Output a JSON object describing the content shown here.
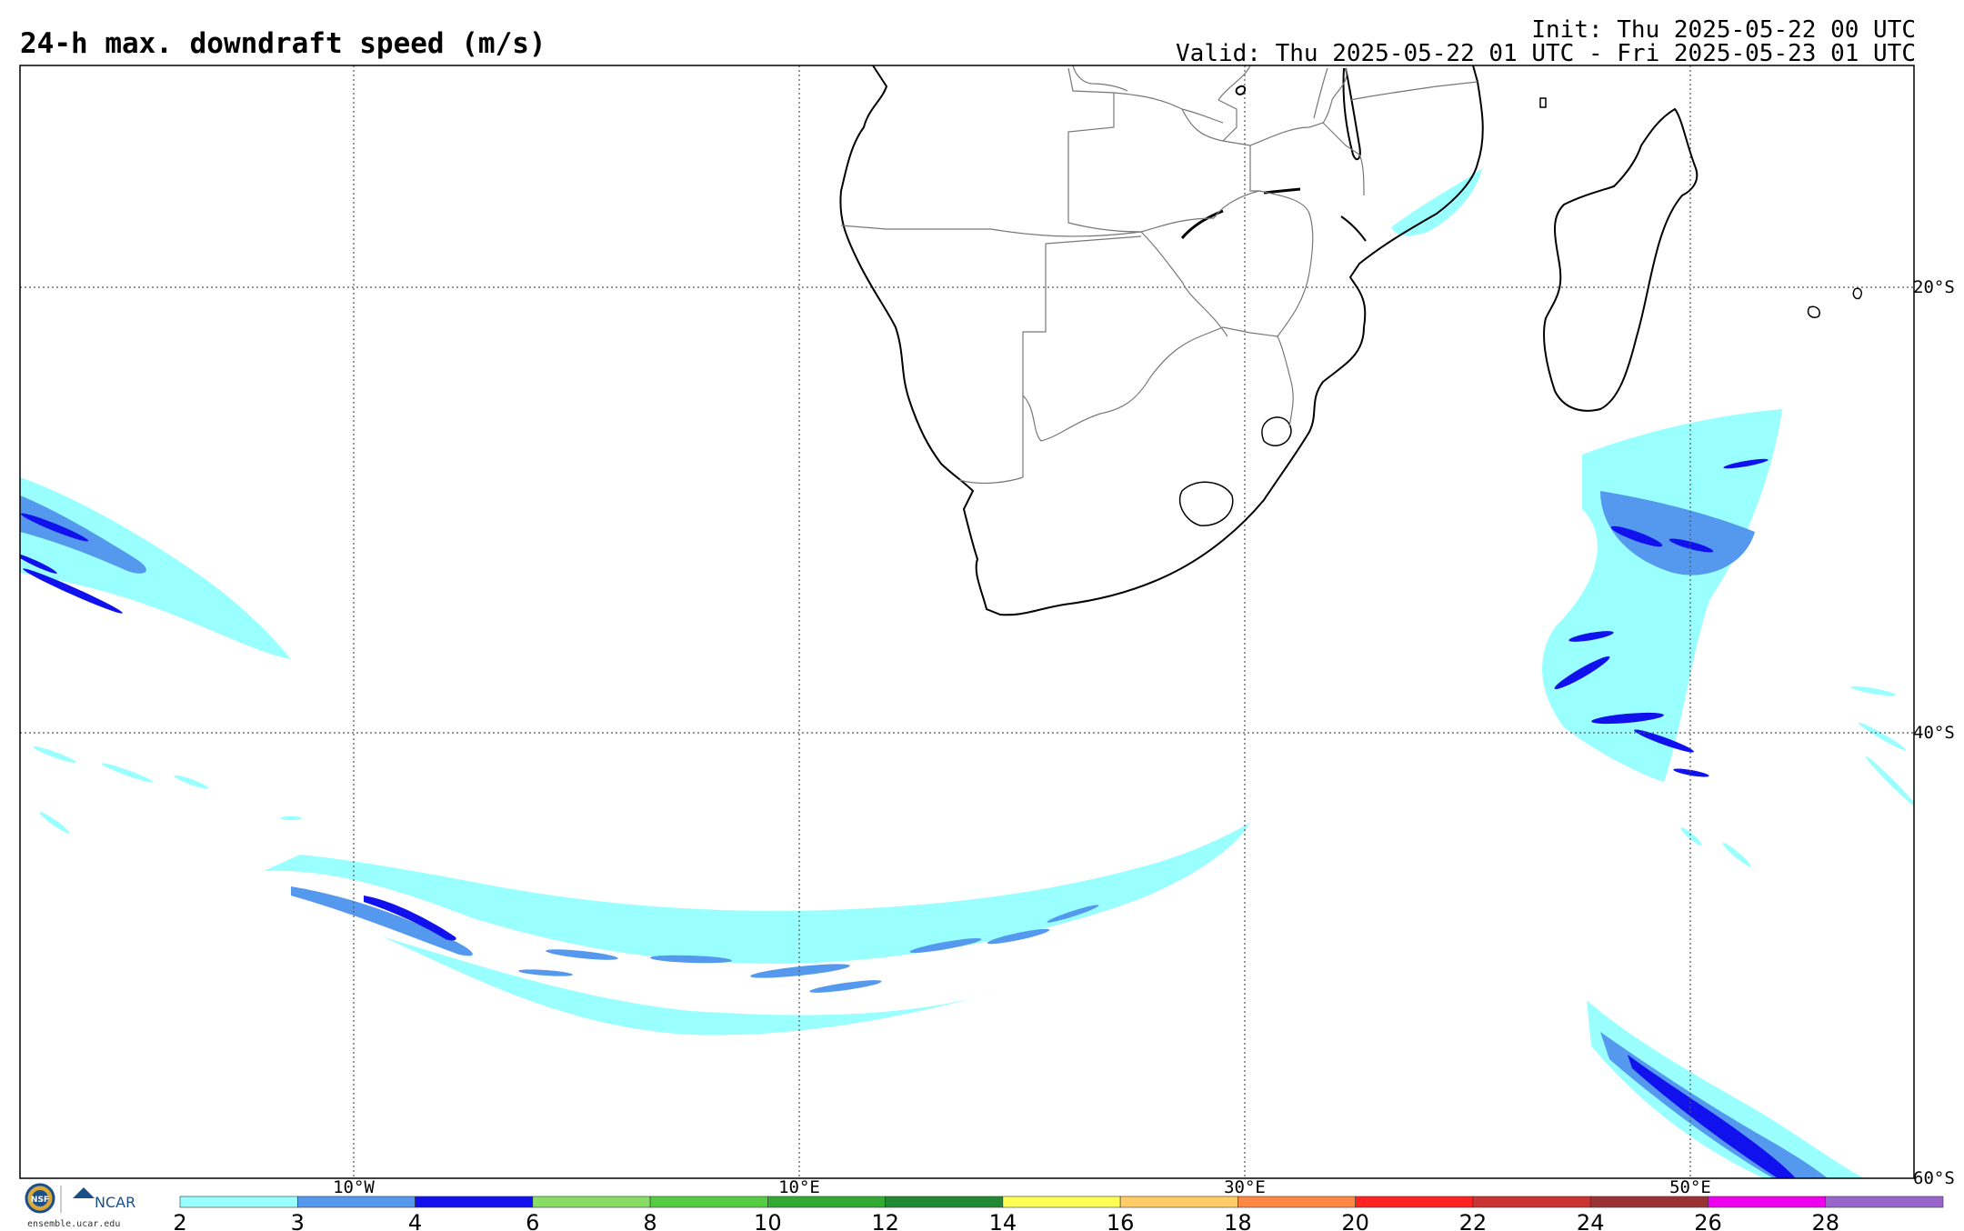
{
  "title": "24-h max. downdraft speed (m/s)",
  "init": "Init: Thu 2025-05-22 00 UTC",
  "valid": "Valid: Thu 2025-05-22 01 UTC - Fri 2025-05-23 01 UTC",
  "logo": {
    "org": "NCAR",
    "site": "ensemble.ucar.edu",
    "seal": "NSF"
  },
  "longitude_labels": [
    "10°W",
    "10°E",
    "30°E",
    "50°E"
  ],
  "latitude_labels": [
    "20°S",
    "40°S",
    "60°S"
  ],
  "colorbar": {
    "ticks": [
      "2",
      "3",
      "4",
      "6",
      "8",
      "10",
      "12",
      "14",
      "16",
      "18",
      "20",
      "22",
      "24",
      "26",
      "28"
    ],
    "colors": [
      "#99ffff",
      "#5599ee",
      "#1111ee",
      "#88dd66",
      "#55cc44",
      "#33aa33",
      "#228833",
      "#ffff55",
      "#ffcc66",
      "#ff8844",
      "#ff2222",
      "#cc3333",
      "#993333",
      "#ee00ee",
      "#9966cc"
    ]
  },
  "colors": {
    "coast": "#000000",
    "border": "#777777",
    "grid": "#555555"
  }
}
